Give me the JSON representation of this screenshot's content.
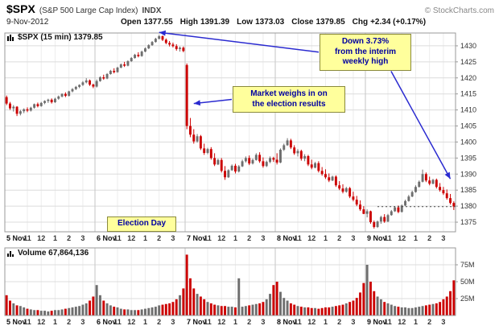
{
  "header": {
    "symbol": "$SPX",
    "name": "(S&P 500 Large Cap Index)",
    "exchange": "INDX",
    "date": "9-Nov-2012",
    "copyright": "© StockCharts.com",
    "quote": {
      "open_label": "Open",
      "open": "1377.55",
      "high_label": "High",
      "high": "1391.39",
      "low_label": "Low",
      "low": "1373.03",
      "close_label": "Close",
      "close": "1379.85",
      "chg_label": "Chg",
      "chg": "+2.34 (+0.17%)"
    }
  },
  "price_panel": {
    "legend": "$SPX (15 min) 1379.85"
  },
  "volume_panel": {
    "legend": "Volume 67,864,136"
  },
  "annotations": {
    "down_note": {
      "text": "Down 3.73%\nfrom the interim\nweekly high",
      "arrows": [
        {
          "from": "left",
          "bar": 44,
          "price": 1434.2
        },
        {
          "from": "bottomright",
          "bar": 128,
          "price": 1388.5
        }
      ]
    },
    "market_note": {
      "text": "Market weighs in on\nthe election results",
      "arrows": [
        {
          "from": "left",
          "bar": 54,
          "price": 1412
        }
      ]
    },
    "election_note": {
      "text": "Election Day",
      "arrows": []
    }
  },
  "chart_data": {
    "type": "candlestick",
    "title": "$SPX (15 min)",
    "last": 1379.85,
    "ohlc_summary": {
      "open": 1377.55,
      "high": 1391.39,
      "low": 1373.03,
      "close": 1379.85,
      "change": "+2.34 (+0.17%)"
    },
    "volume_total": "67,864,136",
    "y_ticks": [
      1375,
      1380,
      1385,
      1390,
      1395,
      1400,
      1405,
      1410,
      1415,
      1420,
      1425,
      1430
    ],
    "y_range": [
      1372,
      1434
    ],
    "volume_ticks_m": [
      25,
      50,
      75
    ],
    "volume_range_m": [
      0,
      100
    ],
    "day_labels": [
      "5 Nov",
      "6 Nov",
      "7 Nov",
      "8 Nov",
      "9 Nov"
    ],
    "time_labels": [
      "11",
      "12",
      "1",
      "2",
      "3"
    ],
    "time_offsets": [
      6,
      10,
      14,
      18,
      22
    ],
    "bars_per_day": 26,
    "close_line": 1379.85,
    "close_line_start_bar": 107,
    "colors": {
      "up": "#6e6e6e",
      "down": "#cc0000",
      "arrow": "#2a2ad0",
      "grid": "#dcdcdc",
      "day_grid": "#c6c6c6",
      "hour_grid": "#ededed",
      "border": "#999999",
      "note_bg": "#ffff9c",
      "note_text": "#0000a0"
    },
    "candles": [
      [
        1414.0,
        1414.5,
        1411.5,
        1412.0
      ],
      [
        1412.0,
        1412.5,
        1410.0,
        1410.5
      ],
      [
        1410.5,
        1411.5,
        1409.5,
        1411.0
      ],
      [
        1411.0,
        1411.2,
        1408.1,
        1408.8
      ],
      [
        1408.8,
        1410.0,
        1408.3,
        1409.6
      ],
      [
        1409.6,
        1410.5,
        1409.0,
        1410.2
      ],
      [
        1410.2,
        1410.8,
        1409.3,
        1409.8
      ],
      [
        1409.8,
        1411.0,
        1409.5,
        1410.7
      ],
      [
        1410.7,
        1412.0,
        1410.4,
        1411.8
      ],
      [
        1411.8,
        1412.3,
        1410.8,
        1411.2
      ],
      [
        1411.2,
        1412.5,
        1411.0,
        1412.2
      ],
      [
        1412.2,
        1413.0,
        1411.8,
        1412.8
      ],
      [
        1412.8,
        1413.5,
        1412.2,
        1413.2
      ],
      [
        1413.2,
        1413.6,
        1412.0,
        1412.4
      ],
      [
        1412.4,
        1413.8,
        1412.2,
        1413.5
      ],
      [
        1413.5,
        1414.5,
        1413.2,
        1414.2
      ],
      [
        1414.2,
        1415.2,
        1413.9,
        1415.0
      ],
      [
        1415.0,
        1415.5,
        1414.0,
        1414.4
      ],
      [
        1414.4,
        1416.0,
        1414.2,
        1415.8
      ],
      [
        1415.8,
        1416.8,
        1415.5,
        1416.5
      ],
      [
        1416.5,
        1417.5,
        1416.2,
        1417.2
      ],
      [
        1417.2,
        1418.0,
        1416.8,
        1417.8
      ],
      [
        1417.8,
        1419.0,
        1417.5,
        1418.6
      ],
      [
        1418.6,
        1419.9,
        1418.3,
        1419.2
      ],
      [
        1419.2,
        1419.5,
        1417.5,
        1417.9
      ],
      [
        1417.9,
        1418.2,
        1416.8,
        1417.3
      ],
      [
        1417.3,
        1419.5,
        1417.0,
        1419.0
      ],
      [
        1419.0,
        1420.5,
        1418.8,
        1420.2
      ],
      [
        1420.2,
        1421.0,
        1419.4,
        1419.8
      ],
      [
        1419.8,
        1421.5,
        1419.6,
        1421.2
      ],
      [
        1421.2,
        1422.5,
        1421.0,
        1422.2
      ],
      [
        1422.2,
        1423.0,
        1421.4,
        1421.8
      ],
      [
        1421.8,
        1423.5,
        1421.6,
        1423.2
      ],
      [
        1423.2,
        1424.5,
        1423.0,
        1424.2
      ],
      [
        1424.2,
        1425.0,
        1423.4,
        1423.8
      ],
      [
        1423.8,
        1425.5,
        1423.6,
        1425.2
      ],
      [
        1425.2,
        1426.5,
        1425.0,
        1426.2
      ],
      [
        1426.2,
        1427.5,
        1426.0,
        1427.2
      ],
      [
        1427.2,
        1428.0,
        1426.4,
        1426.8
      ],
      [
        1426.8,
        1428.5,
        1426.6,
        1428.2
      ],
      [
        1428.2,
        1429.5,
        1428.0,
        1429.2
      ],
      [
        1429.2,
        1430.5,
        1429.0,
        1430.2
      ],
      [
        1430.2,
        1431.5,
        1430.0,
        1431.2
      ],
      [
        1431.2,
        1432.5,
        1431.0,
        1432.2
      ],
      [
        1432.2,
        1433.4,
        1432.0,
        1433.0
      ],
      [
        1433.0,
        1433.2,
        1431.5,
        1431.9
      ],
      [
        1431.9,
        1432.3,
        1430.5,
        1430.9
      ],
      [
        1430.9,
        1431.5,
        1429.8,
        1430.4
      ],
      [
        1430.4,
        1431.0,
        1429.5,
        1429.9
      ],
      [
        1429.9,
        1430.5,
        1428.5,
        1429.0
      ],
      [
        1429.0,
        1429.8,
        1428.2,
        1429.4
      ],
      [
        1429.4,
        1429.8,
        1428.0,
        1428.4
      ],
      [
        1424.0,
        1424.5,
        1404.0,
        1405.0
      ],
      [
        1405.0,
        1407.5,
        1401.5,
        1402.3
      ],
      [
        1402.3,
        1404.0,
        1399.5,
        1400.2
      ],
      [
        1400.2,
        1402.5,
        1399.8,
        1401.8
      ],
      [
        1401.8,
        1402.2,
        1397.5,
        1398.0
      ],
      [
        1398.0,
        1399.5,
        1396.0,
        1396.6
      ],
      [
        1396.6,
        1398.2,
        1396.2,
        1397.8
      ],
      [
        1397.8,
        1398.4,
        1394.5,
        1395.0
      ],
      [
        1395.0,
        1396.5,
        1392.5,
        1393.0
      ],
      [
        1393.0,
        1394.8,
        1392.8,
        1394.4
      ],
      [
        1394.4,
        1395.0,
        1390.5,
        1391.0
      ],
      [
        1391.0,
        1392.5,
        1388.2,
        1389.0
      ],
      [
        1389.0,
        1391.5,
        1388.8,
        1391.2
      ],
      [
        1391.2,
        1393.0,
        1391.0,
        1392.6
      ],
      [
        1392.6,
        1393.2,
        1390.2,
        1390.8
      ],
      [
        1390.8,
        1392.8,
        1390.5,
        1392.4
      ],
      [
        1392.4,
        1394.5,
        1392.2,
        1394.0
      ],
      [
        1394.0,
        1395.5,
        1393.6,
        1395.0
      ],
      [
        1395.0,
        1395.8,
        1392.8,
        1393.3
      ],
      [
        1393.3,
        1394.8,
        1393.0,
        1394.4
      ],
      [
        1394.4,
        1396.5,
        1394.2,
        1396.0
      ],
      [
        1396.0,
        1396.8,
        1393.5,
        1394.0
      ],
      [
        1394.0,
        1395.2,
        1392.0,
        1392.5
      ],
      [
        1392.5,
        1394.2,
        1392.2,
        1393.8
      ],
      [
        1393.8,
        1395.5,
        1393.4,
        1395.0
      ],
      [
        1395.0,
        1395.4,
        1393.8,
        1394.5
      ],
      [
        1394.5,
        1396.5,
        1393.0,
        1393.6
      ],
      [
        1393.6,
        1398.0,
        1393.4,
        1397.6
      ],
      [
        1397.6,
        1399.5,
        1397.2,
        1399.0
      ],
      [
        1399.0,
        1401.2,
        1398.8,
        1400.5
      ],
      [
        1400.5,
        1401.0,
        1397.8,
        1398.3
      ],
      [
        1398.3,
        1399.0,
        1396.0,
        1396.5
      ],
      [
        1396.5,
        1397.8,
        1395.5,
        1397.2
      ],
      [
        1397.2,
        1397.6,
        1394.2,
        1394.8
      ],
      [
        1394.8,
        1396.2,
        1394.0,
        1395.6
      ],
      [
        1395.6,
        1396.0,
        1392.5,
        1393.0
      ],
      [
        1393.0,
        1394.5,
        1391.5,
        1392.0
      ],
      [
        1392.0,
        1393.8,
        1391.8,
        1393.4
      ],
      [
        1393.4,
        1394.0,
        1390.5,
        1391.0
      ],
      [
        1391.0,
        1392.2,
        1389.5,
        1390.0
      ],
      [
        1390.0,
        1391.5,
        1388.5,
        1389.0
      ],
      [
        1389.0,
        1390.2,
        1387.5,
        1388.0
      ],
      [
        1388.0,
        1389.5,
        1387.8,
        1389.2
      ],
      [
        1389.2,
        1389.6,
        1386.0,
        1386.5
      ],
      [
        1386.5,
        1387.8,
        1385.0,
        1385.5
      ],
      [
        1385.5,
        1386.8,
        1384.0,
        1384.5
      ],
      [
        1384.5,
        1386.0,
        1384.2,
        1385.6
      ],
      [
        1385.6,
        1386.0,
        1382.5,
        1383.0
      ],
      [
        1383.0,
        1384.5,
        1381.5,
        1382.0
      ],
      [
        1382.0,
        1383.2,
        1380.0,
        1380.5
      ],
      [
        1380.5,
        1381.8,
        1378.5,
        1379.0
      ],
      [
        1379.0,
        1380.0,
        1377.5,
        1377.6
      ],
      [
        1377.6,
        1379.0,
        1376.5,
        1378.4
      ],
      [
        1378.4,
        1378.6,
        1374.5,
        1375.0
      ],
      [
        1375.0,
        1375.5,
        1373.0,
        1373.5
      ],
      [
        1373.5,
        1375.5,
        1373.2,
        1375.2
      ],
      [
        1375.2,
        1377.0,
        1374.5,
        1376.6
      ],
      [
        1376.6,
        1377.5,
        1374.8,
        1375.2
      ],
      [
        1375.2,
        1377.6,
        1375.0,
        1377.2
      ],
      [
        1377.2,
        1378.8,
        1377.0,
        1378.4
      ],
      [
        1378.4,
        1380.0,
        1378.2,
        1379.6
      ],
      [
        1379.6,
        1380.2,
        1377.8,
        1378.2
      ],
      [
        1378.2,
        1380.5,
        1378.0,
        1380.2
      ],
      [
        1380.2,
        1382.0,
        1380.0,
        1381.6
      ],
      [
        1381.6,
        1383.5,
        1381.4,
        1383.0
      ],
      [
        1383.0,
        1384.8,
        1382.8,
        1384.4
      ],
      [
        1384.4,
        1386.5,
        1384.2,
        1386.0
      ],
      [
        1386.0,
        1388.0,
        1385.8,
        1387.6
      ],
      [
        1387.6,
        1391.4,
        1387.4,
        1390.0
      ],
      [
        1390.0,
        1390.5,
        1387.5,
        1388.0
      ],
      [
        1388.0,
        1389.2,
        1386.5,
        1387.0
      ],
      [
        1387.0,
        1388.5,
        1386.8,
        1388.2
      ],
      [
        1388.2,
        1388.6,
        1385.5,
        1386.0
      ],
      [
        1386.0,
        1387.2,
        1384.5,
        1385.0
      ],
      [
        1385.0,
        1386.0,
        1383.5,
        1384.0
      ],
      [
        1384.0,
        1385.2,
        1382.0,
        1382.5
      ],
      [
        1382.5,
        1383.8,
        1380.5,
        1381.0
      ],
      [
        1381.0,
        1381.5,
        1378.8,
        1379.9
      ]
    ],
    "volume_m": [
      30,
      22,
      18,
      15,
      14,
      12,
      10,
      9,
      8,
      8,
      7,
      7,
      6,
      7,
      8,
      8,
      9,
      10,
      11,
      12,
      13,
      14,
      16,
      18,
      22,
      28,
      45,
      30,
      22,
      18,
      15,
      13,
      12,
      10,
      9,
      9,
      8,
      8,
      8,
      9,
      10,
      11,
      12,
      13,
      15,
      16,
      17,
      18,
      20,
      24,
      30,
      40,
      90,
      55,
      40,
      32,
      28,
      24,
      20,
      18,
      16,
      15,
      14,
      14,
      13,
      13,
      12,
      55,
      13,
      14,
      15,
      16,
      17,
      18,
      20,
      24,
      32,
      45,
      50,
      35,
      26,
      22,
      18,
      16,
      14,
      13,
      12,
      12,
      11,
      11,
      10,
      11,
      12,
      12,
      13,
      14,
      15,
      16,
      18,
      20,
      22,
      26,
      34,
      48,
      75,
      50,
      36,
      28,
      24,
      20,
      18,
      16,
      14,
      13,
      12,
      12,
      11,
      11,
      12,
      13,
      14,
      15,
      16,
      17,
      18,
      20,
      24,
      28,
      36,
      52
    ]
  }
}
